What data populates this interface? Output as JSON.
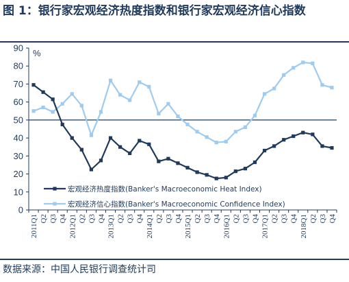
{
  "title": "图 1：银行家宏观经济热度指数和银行家宏观经济信心指数",
  "source": "数据来源：中国人民银行调查统计司",
  "colors": {
    "heat": "#1f3a5c",
    "confidence": "#9ecbf0",
    "text": "#1f3a5c"
  },
  "chart_data": {
    "type": "line",
    "title": "图 1：银行家宏观经济热度指数和银行家宏观经济信心指数",
    "unit": "%",
    "ylim": [
      0,
      90
    ],
    "yticks": [
      0,
      10,
      20,
      30,
      40,
      50,
      60,
      70,
      80,
      90
    ],
    "reference_line": 50,
    "grid": false,
    "legend_position": "bottom-left",
    "categories": [
      "2011Q1",
      "Q2",
      "Q3",
      "Q4",
      "2012Q1",
      "Q2",
      "Q3",
      "Q4",
      "2013Q1",
      "Q2",
      "Q3",
      "Q4",
      "2014Q1",
      "Q2",
      "Q3",
      "Q4",
      "2015Q1",
      "Q2",
      "Q3",
      "Q4",
      "2016Q1",
      "Q2",
      "Q3",
      "Q4",
      "2017Q1",
      "Q2",
      "Q3",
      "Q4",
      "2018Q1",
      "Q2",
      "Q3",
      "Q4"
    ],
    "series": [
      {
        "name": "宏观经济热度指数(Banker's  Macroeconomic Heat Index)",
        "values": [
          69.5,
          65.5,
          61.5,
          47.5,
          40,
          33.5,
          22.5,
          27.5,
          40,
          35,
          31.5,
          38.5,
          36.5,
          27,
          28.5,
          26,
          23.5,
          21,
          19.5,
          17.5,
          18,
          21.5,
          23,
          26.5,
          33,
          35.5,
          39,
          41,
          43,
          42,
          35.5,
          34.5
        ]
      },
      {
        "name": "宏观经济信心指数(Banker's  Macroeconomic Confidence Index)",
        "values": [
          55,
          57,
          54.5,
          59,
          64.5,
          58,
          41.5,
          54.5,
          72,
          64,
          61,
          71,
          68.5,
          53.5,
          59,
          52,
          47.5,
          43.5,
          40.5,
          37.5,
          38,
          43.5,
          46,
          52.5,
          64.5,
          67.5,
          75,
          79,
          82,
          81.5,
          69.5,
          68
        ]
      }
    ]
  }
}
